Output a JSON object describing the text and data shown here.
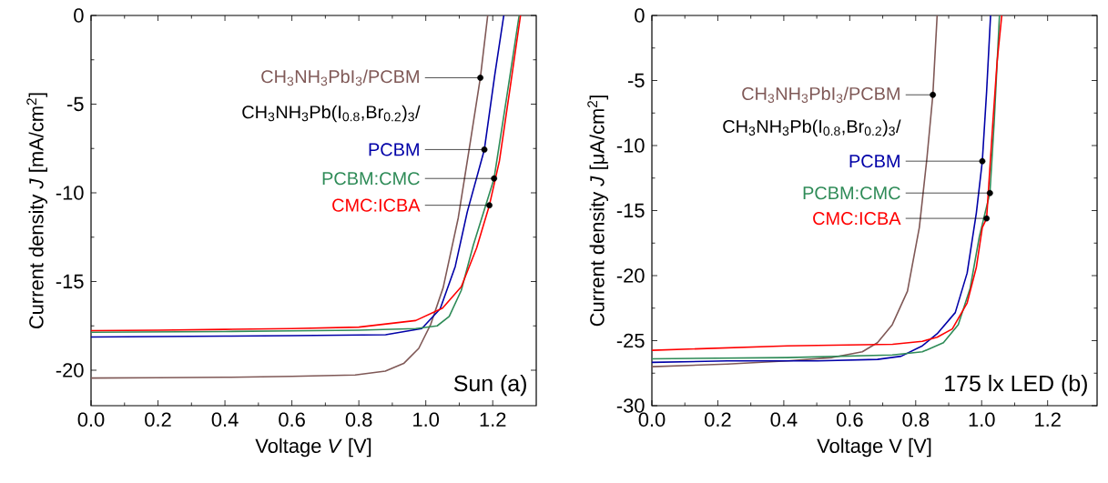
{
  "chart_data": [
    {
      "type": "line",
      "xlabel": "Voltage *V* [V]",
      "ylabel": "Current density *J* [mA/cm$^{2}$]",
      "xlim": [
        0,
        1.33
      ],
      "ylim": [
        -22,
        0
      ],
      "xticks": [
        {
          "value": 0,
          "label": "0.0"
        },
        {
          "value": 0.2,
          "label": "0.2"
        },
        {
          "value": 0.4,
          "label": "0.4"
        },
        {
          "value": 0.6,
          "label": "0.6"
        },
        {
          "value": 0.8,
          "label": "0.8"
        },
        {
          "value": 1.0,
          "label": "1.0"
        },
        {
          "value": 1.2,
          "label": "1.2"
        }
      ],
      "yticks": [
        0,
        -5,
        -10,
        -15,
        -20
      ],
      "series": [
        {
          "color": "#7f5856",
          "x": [
            0,
            0.2,
            0.4,
            0.6,
            0.789,
            0.879,
            0.934,
            0.979,
            1.015,
            1.052,
            1.097,
            1.133,
            1.163,
            1.185
          ],
          "values": [
            -20.44,
            -20.42,
            -20.4,
            -20.35,
            -20.27,
            -20.05,
            -19.62,
            -18.77,
            -17.4,
            -15.34,
            -11.41,
            -7.13,
            -3.51,
            0
          ]
        },
        {
          "color": "#0000a8",
          "x": [
            0,
            0.2,
            0.4,
            0.6,
            0.88,
            0.988,
            1.043,
            1.088,
            1.124,
            1.175,
            1.206,
            1.233
          ],
          "values": [
            -18.13,
            -18.1,
            -18.08,
            -18.05,
            -18.0,
            -17.65,
            -16.54,
            -14.15,
            -11.07,
            -7.56,
            -3.37,
            0
          ]
        },
        {
          "color": "#2e8b57",
          "x": [
            0,
            0.2,
            0.4,
            0.6,
            0.8,
            0.97,
            1.034,
            1.07,
            1.106,
            1.142,
            1.204,
            1.242,
            1.279
          ],
          "values": [
            -17.86,
            -17.84,
            -17.82,
            -17.78,
            -17.74,
            -17.65,
            -17.5,
            -16.97,
            -15.5,
            -12.95,
            -9.19,
            -4.57,
            0
          ]
        },
        {
          "color": "#ff0000",
          "x": [
            0,
            0.2,
            0.4,
            0.6,
            0.8,
            0.97,
            1.05,
            1.106,
            1.152,
            1.19,
            1.22,
            1.251,
            1.283
          ],
          "values": [
            -17.77,
            -17.74,
            -17.7,
            -17.65,
            -17.57,
            -17.2,
            -16.5,
            -15.3,
            -13.1,
            -10.7,
            -8.2,
            -4.2,
            0
          ]
        }
      ],
      "annotations": [
        {
          "text": "CH$_{3}$NH$_{3}$PbI$_{3}$/PCBM",
          "x": 1.163,
          "y": -3.51
        },
        "CH$_{3}$NH$_{3}$Pb(I$_{0.8}$,Br$_{0.2}$)$_{3}$/",
        {
          "text": "PCBM",
          "x": 1.175,
          "y": -7.56
        },
        {
          "text": "PCBM:CMC",
          "x": 1.204,
          "y": -9.19
        },
        {
          "text": "CMC:ICBA",
          "x": 1.19,
          "y": -10.7
        },
        "Sun (a)"
      ]
    },
    {
      "type": "line",
      "xlabel": "Voltage V [V]",
      "ylabel": "Current density *J* [μA/cm$^{2}$]",
      "xlim": [
        0,
        1.35
      ],
      "ylim": [
        -30,
        0
      ],
      "xticks": [
        {
          "value": 0,
          "label": "0.0"
        },
        {
          "value": 0.2,
          "label": "0.2"
        },
        {
          "value": 0.4,
          "label": "0.4"
        },
        {
          "value": 0.6,
          "label": "0.6"
        },
        {
          "value": 0.8,
          "label": "0.8"
        },
        {
          "value": 1.0,
          "label": "1.0"
        },
        {
          "value": 1.2,
          "label": "1.2"
        }
      ],
      "yticks": [
        0,
        -5,
        -10,
        -15,
        -20,
        -25,
        -30
      ],
      "series": [
        {
          "color": "#7f5856",
          "x": [
            0,
            0.229,
            0.411,
            0.547,
            0.638,
            0.684,
            0.729,
            0.775,
            0.811,
            0.834,
            0.852,
            0.865
          ],
          "values": [
            -27.0,
            -26.8,
            -26.56,
            -26.3,
            -25.86,
            -25.16,
            -23.77,
            -21.2,
            -16.3,
            -10.98,
            -6.1,
            0
          ]
        },
        {
          "color": "#0000a8",
          "x": [
            0,
            0.229,
            0.502,
            0.684,
            0.756,
            0.82,
            0.865,
            0.92,
            0.956,
            0.984,
            1.002,
            1.015,
            1.027
          ],
          "values": [
            -26.67,
            -26.56,
            -26.56,
            -26.44,
            -26.2,
            -25.4,
            -24.47,
            -22.84,
            -19.8,
            -15.16,
            -11.2,
            -5.86,
            0
          ]
        },
        {
          "color": "#2e8b57",
          "x": [
            0,
            0.411,
            0.729,
            0.82,
            0.884,
            0.929,
            0.965,
            0.993,
            1.025,
            1.038,
            1.054
          ],
          "values": [
            -26.4,
            -26.3,
            -26.1,
            -25.86,
            -25.16,
            -23.77,
            -20.98,
            -17.0,
            -13.65,
            -8.2,
            0
          ]
        },
        {
          "color": "#ff0000",
          "x": [
            0,
            0.411,
            0.73,
            0.82,
            0.865,
            0.911,
            0.956,
            0.984,
            1.002,
            1.015,
            1.034,
            1.047,
            1.061
          ],
          "values": [
            -25.74,
            -25.4,
            -25.28,
            -25.05,
            -24.74,
            -24.1,
            -22.1,
            -19.35,
            -16.3,
            -15.6,
            -8.2,
            -3.5,
            0
          ]
        }
      ],
      "annotations": [
        {
          "text": "CH$_{3}$NH$_{3}$PbI$_{3}$/PCBM",
          "x": 0.852,
          "y": -6.1
        },
        "CH$_{3}$NH$_{3}$Pb(I$_{0.8}$,Br$_{0.2}$)$_{3}$/",
        {
          "text": "PCBM",
          "x": 1.002,
          "y": -11.2
        },
        {
          "text": "PCBM:CMC",
          "x": 1.025,
          "y": -13.65
        },
        {
          "text": "CMC:ICBA",
          "x": 1.015,
          "y": -15.6
        },
        "175 lx LED (b)"
      ]
    }
  ]
}
